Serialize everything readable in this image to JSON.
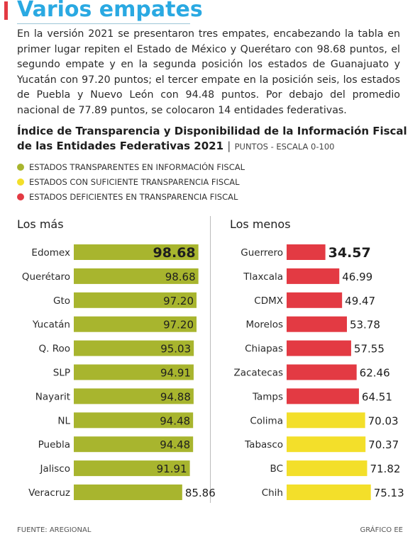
{
  "header": {
    "title": "Varios empates",
    "intro": "En la versión 2021 se presentaron tres empates, encabezando la tabla en primer lugar repiten el Estado de México y Querétaro con 98.68 puntos, el segundo empate y en la segunda posición los estados de Guanajuato y Yucatán con 97.20 puntos; el tercer empate en la posición seis, los estados de Puebla y Nuevo León con 94.48 puntos. Por debajo del promedio nacional de 77.89 puntos, se colocaron 14 entidades federativas."
  },
  "chart_data": {
    "type": "bar",
    "orientation": "horizontal",
    "title": "Índice de Transparencia y Disponibilidad de la Información Fiscal de las Entidades Federativas 2021",
    "separator": "|",
    "subtitle": "PUNTOS - ESCALA 0-100",
    "legend": [
      {
        "label": "ESTADOS TRANSPARENTES EN INFORMACIÓN FISCAL",
        "color": "#a8b52e"
      },
      {
        "label": "ESTADOS CON SUFICIENTE TRANSPARENCIA FISCAL",
        "color": "#f3df2a"
      },
      {
        "label": "ESTADOS DEFICIENTES EN TRANSPARENCIA FISCAL",
        "color": "#e33a43"
      }
    ],
    "panels": [
      {
        "title": "Los más",
        "bars": [
          {
            "label": "Edomex",
            "value": 98.68,
            "value_text": "98.68",
            "color": "#a8b52e",
            "highlight": true
          },
          {
            "label": "Querétaro",
            "value": 98.68,
            "value_text": "98.68",
            "color": "#a8b52e"
          },
          {
            "label": "Gto",
            "value": 97.2,
            "value_text": "97.20",
            "color": "#a8b52e"
          },
          {
            "label": "Yucatán",
            "value": 97.2,
            "value_text": "97.20",
            "color": "#a8b52e"
          },
          {
            "label": "Q. Roo",
            "value": 95.03,
            "value_text": "95.03",
            "color": "#a8b52e"
          },
          {
            "label": "SLP",
            "value": 94.91,
            "value_text": "94.91",
            "color": "#a8b52e"
          },
          {
            "label": "Nayarit",
            "value": 94.88,
            "value_text": "94.88",
            "color": "#a8b52e"
          },
          {
            "label": "NL",
            "value": 94.48,
            "value_text": "94.48",
            "color": "#a8b52e"
          },
          {
            "label": "Puebla",
            "value": 94.48,
            "value_text": "94.48",
            "color": "#a8b52e"
          },
          {
            "label": "Jalisco",
            "value": 91.91,
            "value_text": "91.91",
            "color": "#a8b52e"
          },
          {
            "label": "Veracruz",
            "value": 85.86,
            "value_text": "85.86",
            "color": "#a8b52e"
          }
        ]
      },
      {
        "title": "Los menos",
        "bars": [
          {
            "label": "Guerrero",
            "value": 34.57,
            "value_text": "34.57",
            "color": "#e33a43",
            "highlight": true
          },
          {
            "label": "Tlaxcala",
            "value": 46.99,
            "value_text": "46.99",
            "color": "#e33a43"
          },
          {
            "label": "CDMX",
            "value": 49.47,
            "value_text": "49.47",
            "color": "#e33a43"
          },
          {
            "label": "Morelos",
            "value": 53.78,
            "value_text": "53.78",
            "color": "#e33a43"
          },
          {
            "label": "Chiapas",
            "value": 57.55,
            "value_text": "57.55",
            "color": "#e33a43"
          },
          {
            "label": "Zacatecas",
            "value": 62.46,
            "value_text": "62.46",
            "color": "#e33a43"
          },
          {
            "label": "Tamps",
            "value": 64.51,
            "value_text": "64.51",
            "color": "#e33a43"
          },
          {
            "label": "Colima",
            "value": 70.03,
            "value_text": "70.03",
            "color": "#f3df2a"
          },
          {
            "label": "Tabasco",
            "value": 70.37,
            "value_text": "70.37",
            "color": "#f3df2a"
          },
          {
            "label": "BC",
            "value": 71.82,
            "value_text": "71.82",
            "color": "#f3df2a"
          },
          {
            "label": "Chih",
            "value": 75.13,
            "value_text": "75.13",
            "color": "#f3df2a"
          }
        ]
      }
    ]
  },
  "footer": {
    "source": "FUENTE: AREGIONAL",
    "credit": "GRÁFICO EE"
  },
  "colors": {
    "title": "#2aa9e2",
    "accent_red": "#e33a43"
  }
}
